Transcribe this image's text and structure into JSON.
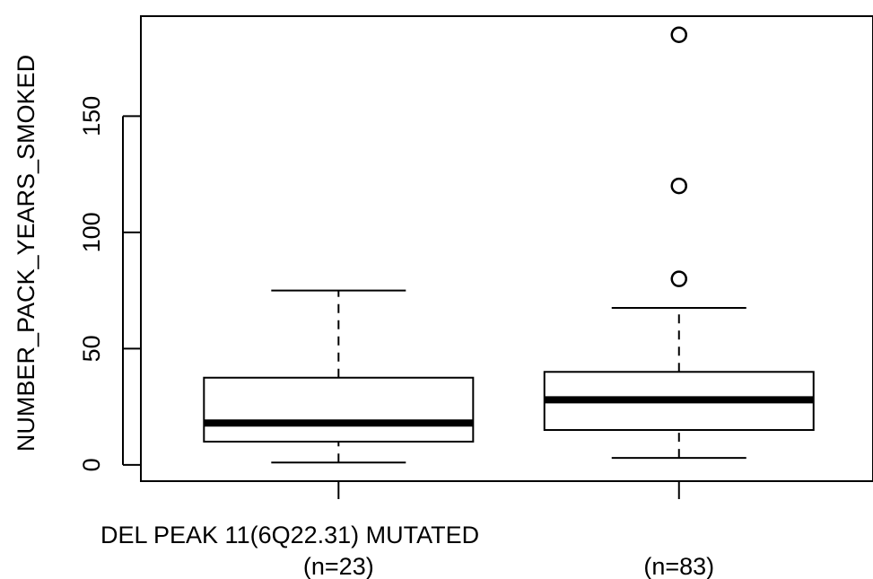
{
  "chart_data": {
    "type": "box",
    "title": "",
    "xlabel": "DEL PEAK 11(6Q22.31) MUTATED",
    "ylabel": "NUMBER_PACK_YEARS_SMOKED",
    "ylim": [
      -7,
      193
    ],
    "yticks": [
      0,
      50,
      100,
      150
    ],
    "grid": false,
    "legend": "none",
    "categories": [
      "(n=23)",
      "(n=83)"
    ],
    "boxes": [
      {
        "label": "(n=23)",
        "whisker_low": 1,
        "q1": 10,
        "median": 18,
        "q3": 37.5,
        "whisker_high": 75,
        "outliers": []
      },
      {
        "label": "(n=83)",
        "whisker_low": 3,
        "q1": 15,
        "median": 28,
        "q3": 40,
        "whisker_high": 67.5,
        "outliers": [
          80,
          120,
          185
        ]
      }
    ]
  }
}
